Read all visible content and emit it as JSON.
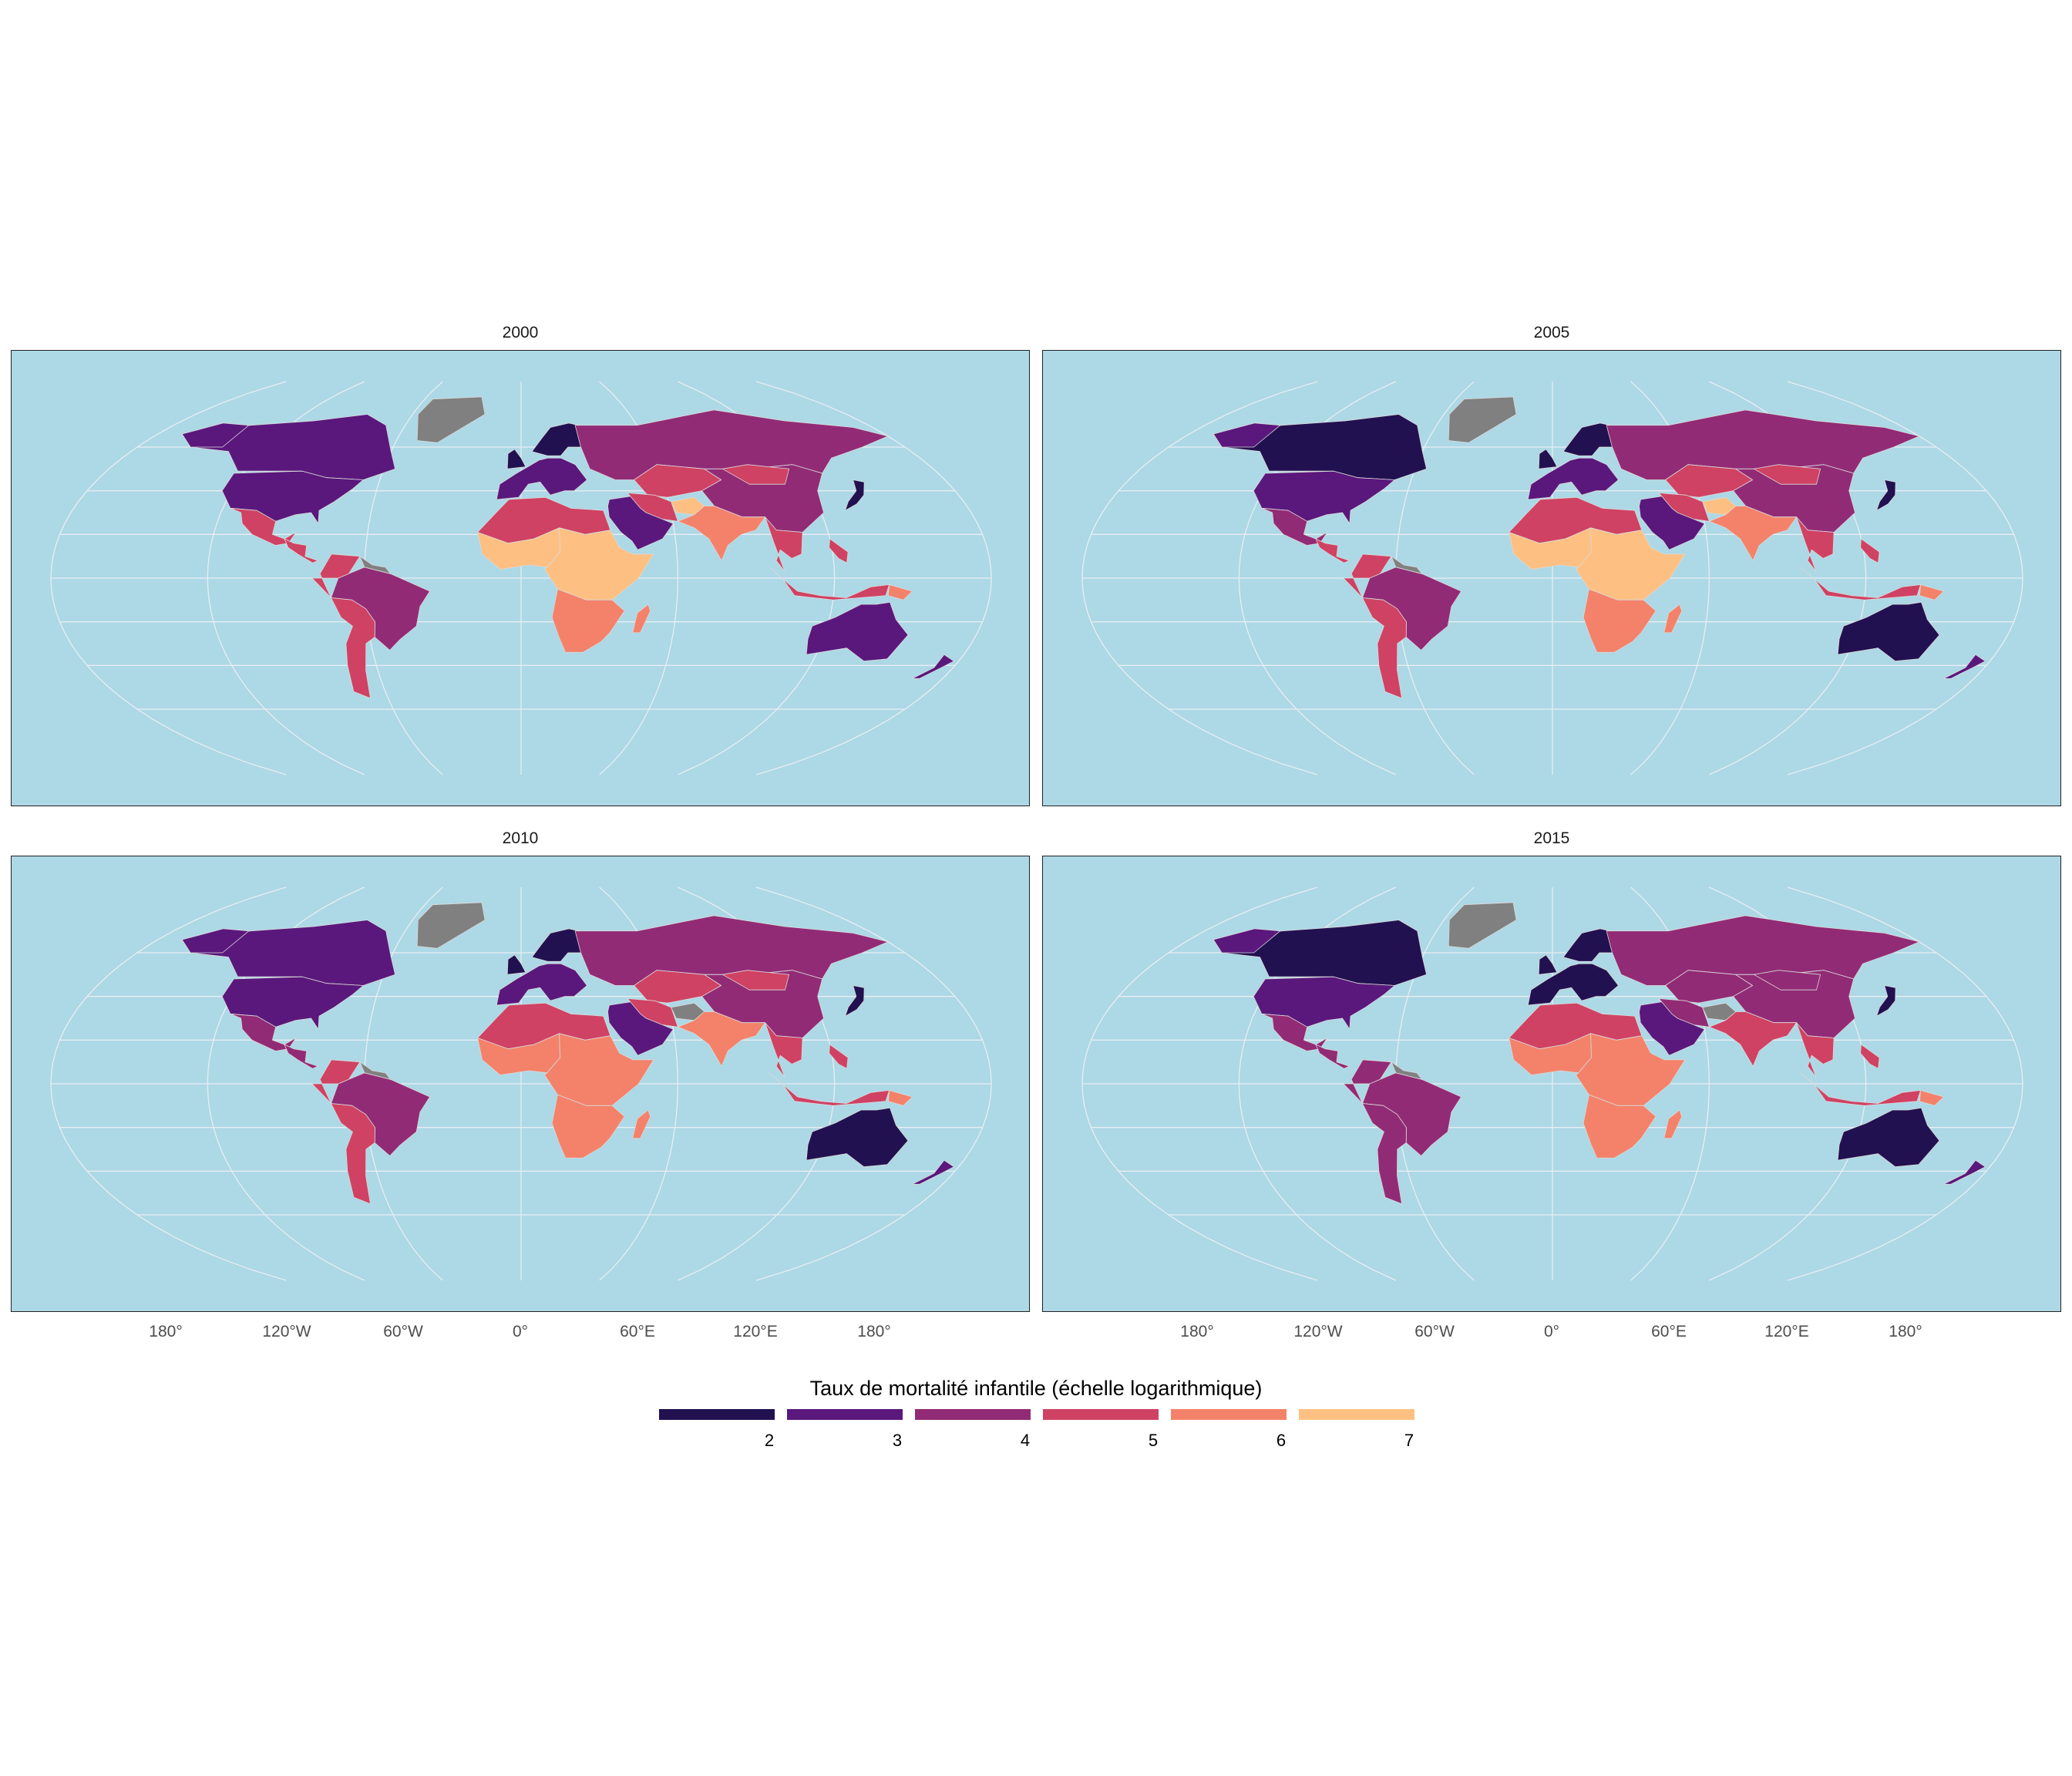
{
  "panels": [
    {
      "title": "2000",
      "variant": 0
    },
    {
      "title": "2005",
      "variant": 1
    },
    {
      "title": "2010",
      "variant": 2
    },
    {
      "title": "2015",
      "variant": 3
    }
  ],
  "x_axis_labels": [
    "180°",
    "120°W",
    "60°W",
    "0°",
    "60°E",
    "120°E",
    "180°"
  ],
  "legend": {
    "title": "Taux de mortalité infantile (échelle logarithmique)",
    "ticks": [
      "2",
      "3",
      "4",
      "5",
      "6",
      "7"
    ],
    "colors": [
      "#221150",
      "#5a187c",
      "#922b75",
      "#cf4263",
      "#f4826a",
      "#fec082"
    ]
  },
  "colors": {
    "ocean": "#add8e6",
    "graticule": "#e8eef2",
    "no_data": "#808080",
    "country_border": "#d9d9d9"
  }
}
